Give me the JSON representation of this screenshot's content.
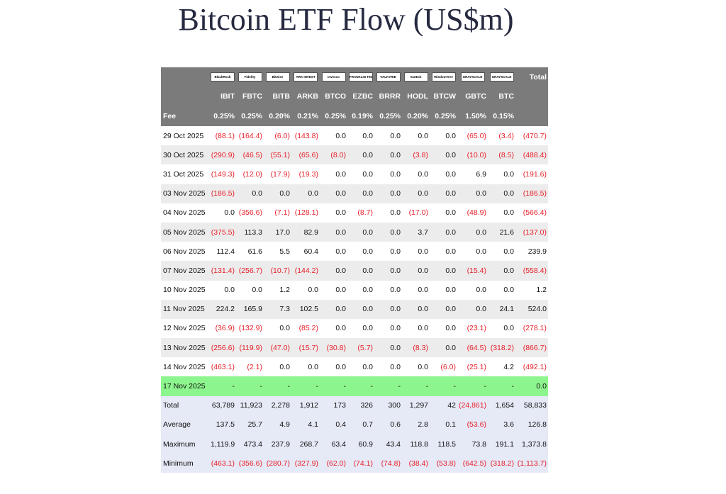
{
  "title": "Bitcoin ETF Flow (US$m)",
  "table": {
    "logos": [
      "BlackRock",
      "Fidelity",
      "Bitwise",
      "ARK INVEST",
      "Invesco",
      "FRANKLIN TEMPLETON",
      "VALKYRIE",
      "VanEck",
      "WisdomTree",
      "GRAYSCALE",
      "GRAYSCALE"
    ],
    "total_header": "Total",
    "tickers": [
      "IBIT",
      "FBTC",
      "BITB",
      "ARKB",
      "BTCO",
      "EZBC",
      "BRRR",
      "HODL",
      "BTCW",
      "GBTC",
      "BTC"
    ],
    "fee_label": "Fee",
    "fees": [
      "0.25%",
      "0.25%",
      "0.20%",
      "0.21%",
      "0.25%",
      "0.19%",
      "0.25%",
      "0.20%",
      "0.25%",
      "1.50%",
      "0.15%"
    ],
    "rows": [
      {
        "date": "29 Oct 2025",
        "cells": [
          "(88.1)",
          "(164.4)",
          "(6.0)",
          "(143.8)",
          "0.0",
          "0.0",
          "0.0",
          "0.0",
          "0.0",
          "(65.0)",
          "(3.4)",
          "(470.7)"
        ]
      },
      {
        "date": "30 Oct 2025",
        "cells": [
          "(290.9)",
          "(46.5)",
          "(55.1)",
          "(65.6)",
          "(8.0)",
          "0.0",
          "0.0",
          "(3.8)",
          "0.0",
          "(10.0)",
          "(8.5)",
          "(488.4)"
        ]
      },
      {
        "date": "31 Oct 2025",
        "cells": [
          "(149.3)",
          "(12.0)",
          "(17.9)",
          "(19.3)",
          "0.0",
          "0.0",
          "0.0",
          "0.0",
          "0.0",
          "6.9",
          "0.0",
          "(191.6)"
        ]
      },
      {
        "date": "03 Nov 2025",
        "cells": [
          "(186.5)",
          "0.0",
          "0.0",
          "0.0",
          "0.0",
          "0.0",
          "0.0",
          "0.0",
          "0.0",
          "0.0",
          "0.0",
          "(186.5)"
        ]
      },
      {
        "date": "04 Nov 2025",
        "cells": [
          "0.0",
          "(356.6)",
          "(7.1)",
          "(128.1)",
          "0.0",
          "(8.7)",
          "0.0",
          "(17.0)",
          "0.0",
          "(48.9)",
          "0.0",
          "(566.4)"
        ]
      },
      {
        "date": "05 Nov 2025",
        "cells": [
          "(375.5)",
          "113.3",
          "17.0",
          "82.9",
          "0.0",
          "0.0",
          "0.0",
          "3.7",
          "0.0",
          "0.0",
          "21.6",
          "(137.0)"
        ]
      },
      {
        "date": "06 Nov 2025",
        "cells": [
          "112.4",
          "61.6",
          "5.5",
          "60.4",
          "0.0",
          "0.0",
          "0.0",
          "0.0",
          "0.0",
          "0.0",
          "0.0",
          "239.9"
        ]
      },
      {
        "date": "07 Nov 2025",
        "cells": [
          "(131.4)",
          "(256.7)",
          "(10.7)",
          "(144.2)",
          "0.0",
          "0.0",
          "0.0",
          "0.0",
          "0.0",
          "(15.4)",
          "0.0",
          "(558.4)"
        ]
      },
      {
        "date": "10 Nov 2025",
        "cells": [
          "0.0",
          "0.0",
          "1.2",
          "0.0",
          "0.0",
          "0.0",
          "0.0",
          "0.0",
          "0.0",
          "0.0",
          "0.0",
          "1.2"
        ]
      },
      {
        "date": "11 Nov 2025",
        "cells": [
          "224.2",
          "165.9",
          "7.3",
          "102.5",
          "0.0",
          "0.0",
          "0.0",
          "0.0",
          "0.0",
          "0.0",
          "24.1",
          "524.0"
        ]
      },
      {
        "date": "12 Nov 2025",
        "cells": [
          "(36.9)",
          "(132.9)",
          "0.0",
          "(85.2)",
          "0.0",
          "0.0",
          "0.0",
          "0.0",
          "0.0",
          "(23.1)",
          "0.0",
          "(278.1)"
        ]
      },
      {
        "date": "13 Nov 2025",
        "cells": [
          "(256.6)",
          "(119.9)",
          "(47.0)",
          "(15.7)",
          "(30.8)",
          "(5.7)",
          "0.0",
          "(8.3)",
          "0.0",
          "(64.5)",
          "(318.2)",
          "(866.7)"
        ]
      },
      {
        "date": "14 Nov 2025",
        "cells": [
          "(463.1)",
          "(2.1)",
          "0.0",
          "0.0",
          "0.0",
          "0.0",
          "0.0",
          "0.0",
          "(6.0)",
          "(25.1)",
          "4.2",
          "(492.1)"
        ]
      },
      {
        "date": "17 Nov 2025",
        "highlight": true,
        "cells": [
          "-",
          "-",
          "-",
          "-",
          "-",
          "-",
          "-",
          "-",
          "-",
          "-",
          "-",
          "0.0"
        ]
      }
    ],
    "summary": [
      {
        "label": "Total",
        "cells": [
          "63,789",
          "11,923",
          "2,278",
          "1,912",
          "173",
          "326",
          "300",
          "1,297",
          "42",
          "(24,861)",
          "1,654",
          "58,833"
        ]
      },
      {
        "label": "Average",
        "cells": [
          "137.5",
          "25.7",
          "4.9",
          "4.1",
          "0.4",
          "0.7",
          "0.6",
          "2.8",
          "0.1",
          "(53.6)",
          "3.6",
          "126.8"
        ]
      },
      {
        "label": "Maximum",
        "cells": [
          "1,119.9",
          "473.4",
          "237.9",
          "268.7",
          "63.4",
          "60.9",
          "43.4",
          "118.8",
          "118.5",
          "73.8",
          "191.1",
          "1,373.8"
        ]
      },
      {
        "label": "Minimum",
        "cells": [
          "(463.1)",
          "(356.6)",
          "(280.7)",
          "(327.9)",
          "(62.0)",
          "(74.1)",
          "(74.8)",
          "(38.4)",
          "(53.8)",
          "(642.5)",
          "(318.2)",
          "(1,113.7)"
        ]
      }
    ]
  }
}
